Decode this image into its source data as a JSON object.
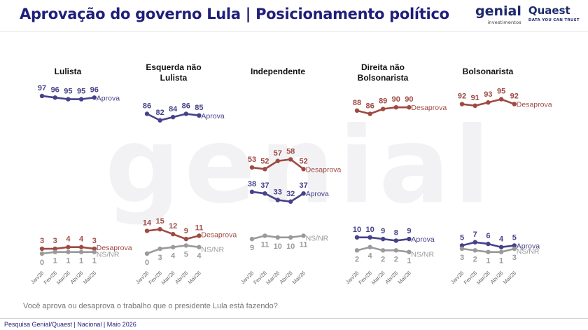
{
  "title": "Aprovação do governo Lula | Posicionamento político",
  "logo_genial": "genial",
  "logo_genial_sub": "investimentos",
  "logo_quaest": "Quaest",
  "logo_quaest_sub": "DATA YOU CAN TRUST",
  "question": "Você aprova ou desaprova o trabalho que o presidente Lula está fazendo?",
  "source": "Pesquisa Genial/Quaest | Nacional | Maio 2026",
  "colors": {
    "aprova": "#45428a",
    "desaprova": "#9e4a43",
    "nsnr": "#9a9a9a",
    "title": "#1f1e7a"
  },
  "chart_data": [
    {
      "type": "line",
      "title": "Lulista",
      "categories": [
        "Jan/26",
        "Fev/26",
        "Mar/26",
        "Abr/26",
        "Mai/26"
      ],
      "series": [
        {
          "name": "Aprova",
          "values": [
            97,
            96,
            95,
            95,
            96
          ]
        },
        {
          "name": "Desaprova",
          "values": [
            3,
            3,
            4,
            4,
            3
          ]
        },
        {
          "name": "NS/NR",
          "values": [
            0,
            1,
            1,
            1,
            1
          ]
        }
      ]
    },
    {
      "type": "line",
      "title": "Esquerda não Lulista",
      "categories": [
        "Jan/26",
        "Fev/26",
        "Mar/26",
        "Abr/26",
        "Mai/26"
      ],
      "series": [
        {
          "name": "Aprova",
          "values": [
            86,
            82,
            84,
            86,
            85
          ]
        },
        {
          "name": "Desaprova",
          "values": [
            14,
            15,
            12,
            9,
            11
          ]
        },
        {
          "name": "NS/NR",
          "values": [
            0,
            3,
            4,
            5,
            4
          ]
        }
      ]
    },
    {
      "type": "line",
      "title": "Independente",
      "categories": [
        "Jan/26",
        "Fev/26",
        "Mar/26",
        "Abr/26",
        "Mai/26"
      ],
      "series": [
        {
          "name": "Aprova",
          "values": [
            38,
            37,
            33,
            32,
            37
          ]
        },
        {
          "name": "Desaprova",
          "values": [
            53,
            52,
            57,
            58,
            52
          ]
        },
        {
          "name": "NS/NR",
          "values": [
            9,
            11,
            10,
            10,
            11
          ]
        }
      ]
    },
    {
      "type": "line",
      "title": "Direita não Bolsonarista",
      "categories": [
        "Jan/26",
        "Fev/26",
        "Mar/26",
        "Abr/26",
        "Mai/26"
      ],
      "series": [
        {
          "name": "Aprova",
          "values": [
            10,
            10,
            9,
            8,
            9
          ]
        },
        {
          "name": "Desaprova",
          "values": [
            88,
            86,
            89,
            90,
            90
          ]
        },
        {
          "name": "NS/NR",
          "values": [
            2,
            4,
            2,
            2,
            1
          ]
        }
      ]
    },
    {
      "type": "line",
      "title": "Bolsonarista",
      "categories": [
        "Jan/26",
        "Fev/26",
        "Mar/26",
        "Abr/26",
        "Mai/26"
      ],
      "series": [
        {
          "name": "Aprova",
          "values": [
            5,
            7,
            6,
            4,
            5
          ]
        },
        {
          "name": "Desaprova",
          "values": [
            92,
            91,
            93,
            95,
            92
          ]
        },
        {
          "name": "NS/NR",
          "values": [
            3,
            2,
            1,
            1,
            3
          ]
        }
      ]
    }
  ]
}
